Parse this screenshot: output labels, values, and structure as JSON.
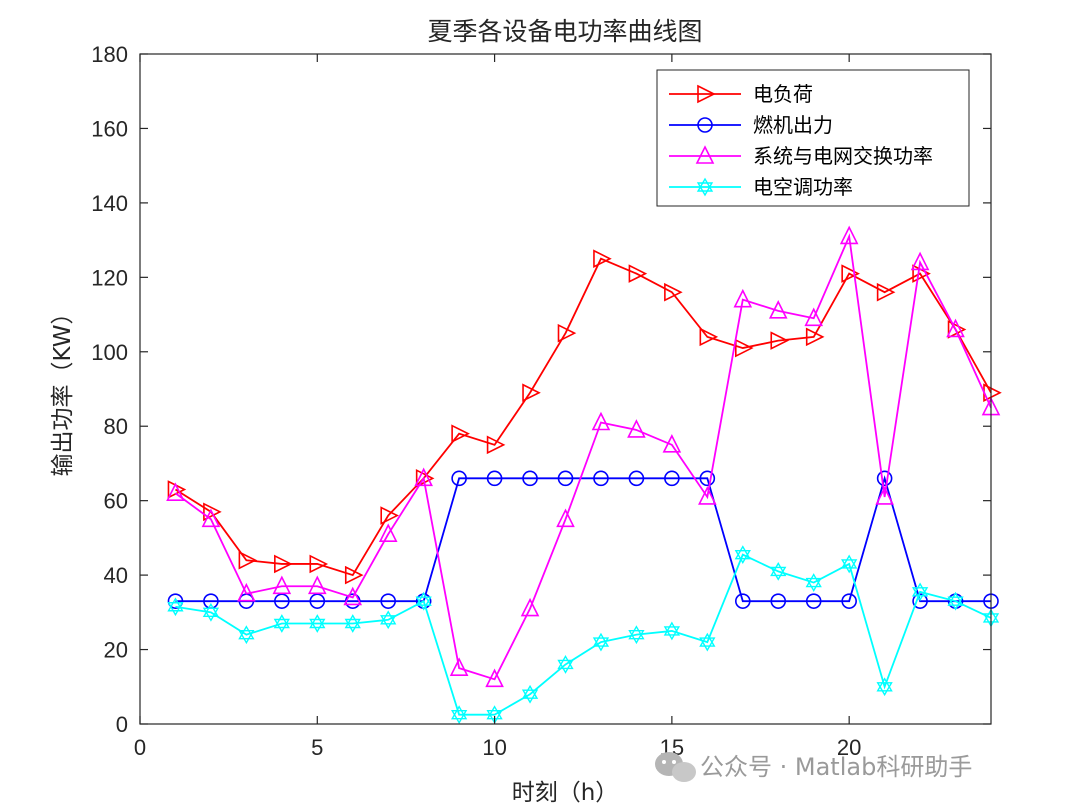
{
  "chart_data": {
    "type": "line",
    "title": "夏季各设备电功率曲线图",
    "xlabel": "时刻（h）",
    "ylabel": "输出功率（KW）",
    "xlim": [
      0,
      24
    ],
    "ylim": [
      0,
      180
    ],
    "xticks": [
      0,
      5,
      10,
      15,
      20
    ],
    "yticks": [
      0,
      20,
      40,
      60,
      80,
      100,
      120,
      140,
      160,
      180
    ],
    "grid": false,
    "legend_position": "top-right",
    "x": [
      1,
      2,
      3,
      4,
      5,
      6,
      7,
      8,
      9,
      10,
      11,
      12,
      13,
      14,
      15,
      16,
      17,
      18,
      19,
      20,
      21,
      22,
      23,
      24
    ],
    "series": [
      {
        "name": "电负荷",
        "color": "#ff0000",
        "marker": "triangle-right",
        "values": [
          63,
          57,
          44,
          43,
          43,
          40,
          56,
          66,
          78,
          75,
          89,
          105,
          125,
          121,
          116,
          104,
          101,
          103,
          104,
          121,
          116,
          121,
          106,
          89
        ]
      },
      {
        "name": "燃机出力",
        "color": "#0000ff",
        "marker": "circle",
        "values": [
          33,
          33,
          33,
          33,
          33,
          33,
          33,
          33,
          66,
          66,
          66,
          66,
          66,
          66,
          66,
          66,
          33,
          33,
          33,
          33,
          66,
          33,
          33,
          33
        ]
      },
      {
        "name": "系统与电网交换功率",
        "color": "#ff00ff",
        "marker": "triangle-up",
        "values": [
          62,
          55,
          35,
          37,
          37,
          34,
          51,
          66,
          15,
          12,
          31,
          55,
          81,
          79,
          75,
          61,
          114,
          111,
          109,
          131,
          61,
          124,
          106,
          85
        ]
      },
      {
        "name": "电空调功率",
        "color": "#00ffff",
        "marker": "hexagram",
        "values": [
          31.5,
          30,
          24,
          27,
          27,
          27,
          28,
          33,
          2.5,
          2.5,
          8,
          16,
          22,
          24,
          25,
          22,
          45.5,
          41,
          38,
          43,
          10,
          35.5,
          33,
          28.5
        ]
      }
    ]
  },
  "watermark": {
    "icon": "wechat-icon",
    "text": "公众号 · Matlab科研助手"
  }
}
